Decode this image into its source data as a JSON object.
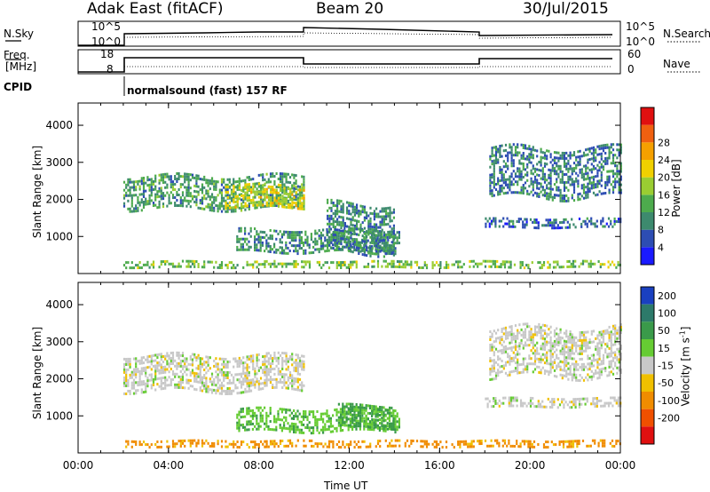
{
  "header": {
    "station": "Adak East (fitACF)",
    "beam": "Beam 20",
    "date": "30/Jul/2015"
  },
  "strips": {
    "nsky_label": "N.Sky",
    "nsky_ticks": [
      "10^5",
      "10^0"
    ],
    "nsearch_label": "N.Search",
    "nsearch_ticks": [
      "10^5",
      "10^0"
    ],
    "freq_label_1": "Freq.",
    "freq_label_2": "[MHz]",
    "freq_ticks": [
      "18",
      "8"
    ],
    "nave_label": "Nave",
    "nave_ticks": [
      "60",
      "0"
    ],
    "cpid_label": "CPID",
    "cpid_text": "normalsound (fast) 157 RF"
  },
  "chart_data": [
    {
      "type": "heatmap",
      "name": "power",
      "ylabel": "Slant Range [km]",
      "yticks": [
        1000,
        2000,
        3000,
        4000
      ],
      "ylim": [
        0,
        4600
      ],
      "colorbar_label": "Power [dB]",
      "colorbar_ticks": [
        4,
        8,
        12,
        16,
        20,
        24,
        28
      ],
      "colorbar_colors": [
        "#1a1aff",
        "#2d4db3",
        "#3d8a6e",
        "#4dab4d",
        "#9acd32",
        "#f0d000",
        "#f5a000",
        "#f06010",
        "#e01010"
      ],
      "data_description_regions": [
        {
          "t_start": 2.0,
          "t_end": 10.0,
          "r_low": 1750,
          "r_high": 2650,
          "power_db": 10
        },
        {
          "t_start": 6.5,
          "t_end": 10.0,
          "r_low": 1800,
          "r_high": 2400,
          "power_db": 18
        },
        {
          "t_start": 7.0,
          "t_end": 14.2,
          "r_low": 600,
          "r_high": 1200,
          "power_db": 9
        },
        {
          "t_start": 11.0,
          "t_end": 14.0,
          "r_low": 600,
          "r_high": 1900,
          "power_db": 8
        },
        {
          "t_start": 18.2,
          "t_end": 24.0,
          "r_low": 2100,
          "r_high": 3400,
          "power_db": 7
        },
        {
          "t_start": 18.0,
          "t_end": 24.0,
          "r_low": 1250,
          "r_high": 1500,
          "power_db": 6
        },
        {
          "t_start": 2.0,
          "t_end": 24.0,
          "r_low": 150,
          "r_high": 350,
          "power_db": 14
        }
      ]
    },
    {
      "type": "heatmap",
      "name": "velocity",
      "ylabel": "Slant Range [km]",
      "yticks": [
        1000,
        2000,
        3000,
        4000
      ],
      "ylim": [
        0,
        4600
      ],
      "colorbar_label": "Velocity [m s^-1]",
      "colorbar_label_parts": [
        "Velocity [m s",
        "-1",
        "]"
      ],
      "colorbar_ticks": [
        200,
        100,
        50,
        15,
        -15,
        -50,
        -100,
        -200
      ],
      "colorbar_colors": [
        "#1a40c0",
        "#2d7a6a",
        "#3a9a4a",
        "#66cc33",
        "#c8c8c8",
        "#f0c000",
        "#f08c00",
        "#f05000",
        "#e01010"
      ],
      "xlabel": "Time UT",
      "xticks": [
        "00:00",
        "04:00",
        "08:00",
        "12:00",
        "16:00",
        "20:00",
        "00:00"
      ],
      "xlim": [
        0,
        24
      ],
      "data_description_regions": [
        {
          "t_start": 2.0,
          "t_end": 10.0,
          "r_low": 1700,
          "r_high": 2650,
          "velocity": 0
        },
        {
          "t_start": 7.0,
          "t_end": 14.2,
          "r_low": 600,
          "r_high": 1200,
          "velocity": 40
        },
        {
          "t_start": 11.5,
          "t_end": 14.0,
          "r_low": 700,
          "r_high": 1300,
          "velocity": 60
        },
        {
          "t_start": 18.2,
          "t_end": 24.0,
          "r_low": 2100,
          "r_high": 3400,
          "velocity": 0
        },
        {
          "t_start": 18.0,
          "t_end": 24.0,
          "r_low": 1250,
          "r_high": 1500,
          "velocity": 0
        },
        {
          "t_start": 2.0,
          "t_end": 24.0,
          "r_low": 150,
          "r_high": 350,
          "velocity": -60
        }
      ]
    }
  ]
}
